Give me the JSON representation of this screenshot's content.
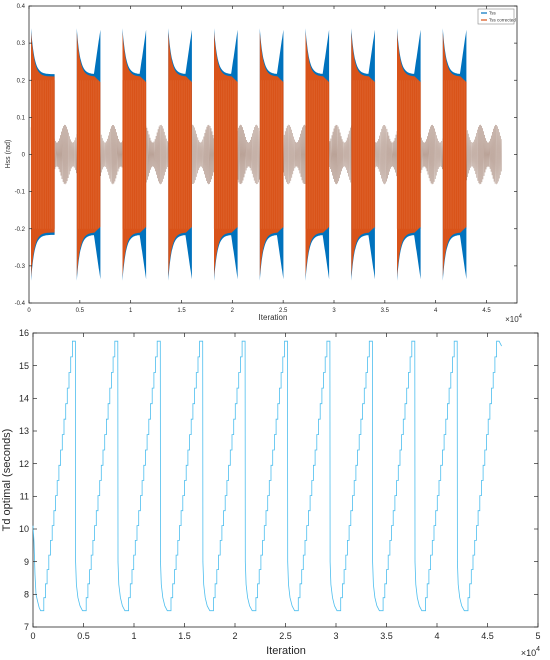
{
  "chart_data": [
    {
      "type": "line",
      "title": "",
      "xlabel": "Iteration",
      "ylabel": "Hss (rad)",
      "x_multiplier": "×10",
      "x_multiplier_exp": "4",
      "xlim": [
        0,
        4.8
      ],
      "ylim": [
        -0.4,
        0.4
      ],
      "xticks": [
        0,
        0.5,
        1,
        1.5,
        2,
        2.5,
        3,
        3.5,
        4,
        4.5
      ],
      "yticks": [
        -0.4,
        -0.3,
        -0.2,
        -0.1,
        0,
        0.1,
        0.2,
        0.3,
        0.4
      ],
      "grid": false,
      "legend_position": "top-right",
      "cycles": {
        "count": 10,
        "period": 0.45,
        "first_start": 0.02,
        "active_fraction": 0.52,
        "peak_amplitude_after_start": 0.33,
        "settled_amplitude": 0.21,
        "late_peak_amplitude": 0.33
      },
      "series": [
        {
          "name": "Tss",
          "color": "#0072BD"
        },
        {
          "name": "Tss corrected",
          "color": "#D95319"
        }
      ]
    },
    {
      "type": "line",
      "title": "",
      "xlabel": "Iteration",
      "ylabel": "Td optimal (seconds)",
      "x_multiplier": "×10",
      "x_multiplier_exp": "4",
      "xlim": [
        0,
        5
      ],
      "ylim": [
        7,
        16
      ],
      "xticks": [
        0,
        0.5,
        1,
        1.5,
        2,
        2.5,
        3,
        3.5,
        4,
        4.5,
        5
      ],
      "yticks": [
        7,
        8,
        9,
        10,
        11,
        12,
        13,
        14,
        15,
        16
      ],
      "grid": false,
      "cycles": {
        "count": 11,
        "period": 0.42,
        "min_value": 7.5,
        "max_value": 15.75,
        "step_count": 18
      },
      "series": [
        {
          "name": "",
          "color": "#4DBEEE"
        }
      ]
    }
  ]
}
